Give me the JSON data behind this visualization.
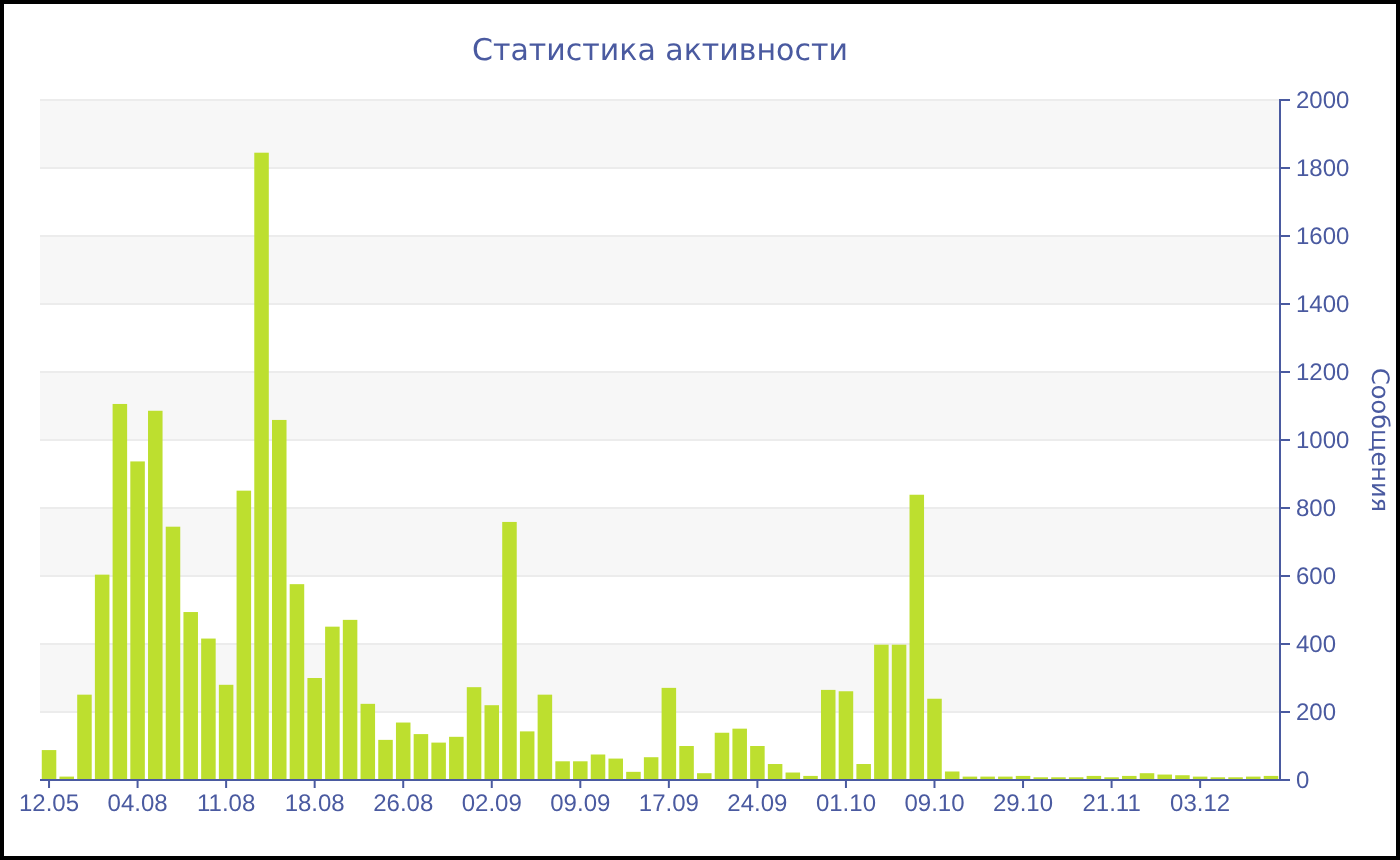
{
  "chart_data": {
    "type": "bar",
    "title": "Статистика активности",
    "ylabel": "Сообщения",
    "categories": [
      "12.05",
      null,
      null,
      null,
      null,
      "04.08",
      null,
      null,
      null,
      null,
      "11.08",
      null,
      null,
      null,
      null,
      "18.08",
      null,
      null,
      null,
      null,
      "26.08",
      null,
      null,
      null,
      null,
      "02.09",
      null,
      null,
      null,
      null,
      "09.09",
      null,
      null,
      null,
      null,
      "17.09",
      null,
      null,
      null,
      null,
      "24.09",
      null,
      null,
      null,
      null,
      "01.10",
      null,
      null,
      null,
      null,
      "09.10",
      null,
      null,
      null,
      null,
      "29.10",
      null,
      null,
      null,
      null,
      "21.11",
      null,
      null,
      null,
      null,
      "03.12",
      null,
      null,
      null,
      null
    ],
    "values": [
      88,
      10,
      251,
      604,
      1106,
      937,
      1086,
      745,
      494,
      416,
      280,
      851,
      1845,
      1059,
      576,
      300,
      451,
      471,
      224,
      118,
      169,
      135,
      110,
      127,
      273,
      220,
      759,
      143,
      251,
      55,
      55,
      75,
      63,
      24,
      67,
      271,
      100,
      20,
      139,
      151,
      100,
      47,
      22,
      12,
      265,
      261,
      47,
      398,
      398,
      839,
      239,
      25,
      10,
      10,
      10,
      12,
      8,
      8,
      8,
      12,
      8,
      12,
      20,
      16,
      14,
      10,
      8,
      8,
      10,
      12
    ],
    "color": "#bddf2f",
    "ylim": [
      0,
      2000
    ],
    "yticks": [
      0,
      200,
      400,
      600,
      800,
      1000,
      1200,
      1400,
      1600,
      1800,
      2000
    ],
    "grid": "y"
  }
}
